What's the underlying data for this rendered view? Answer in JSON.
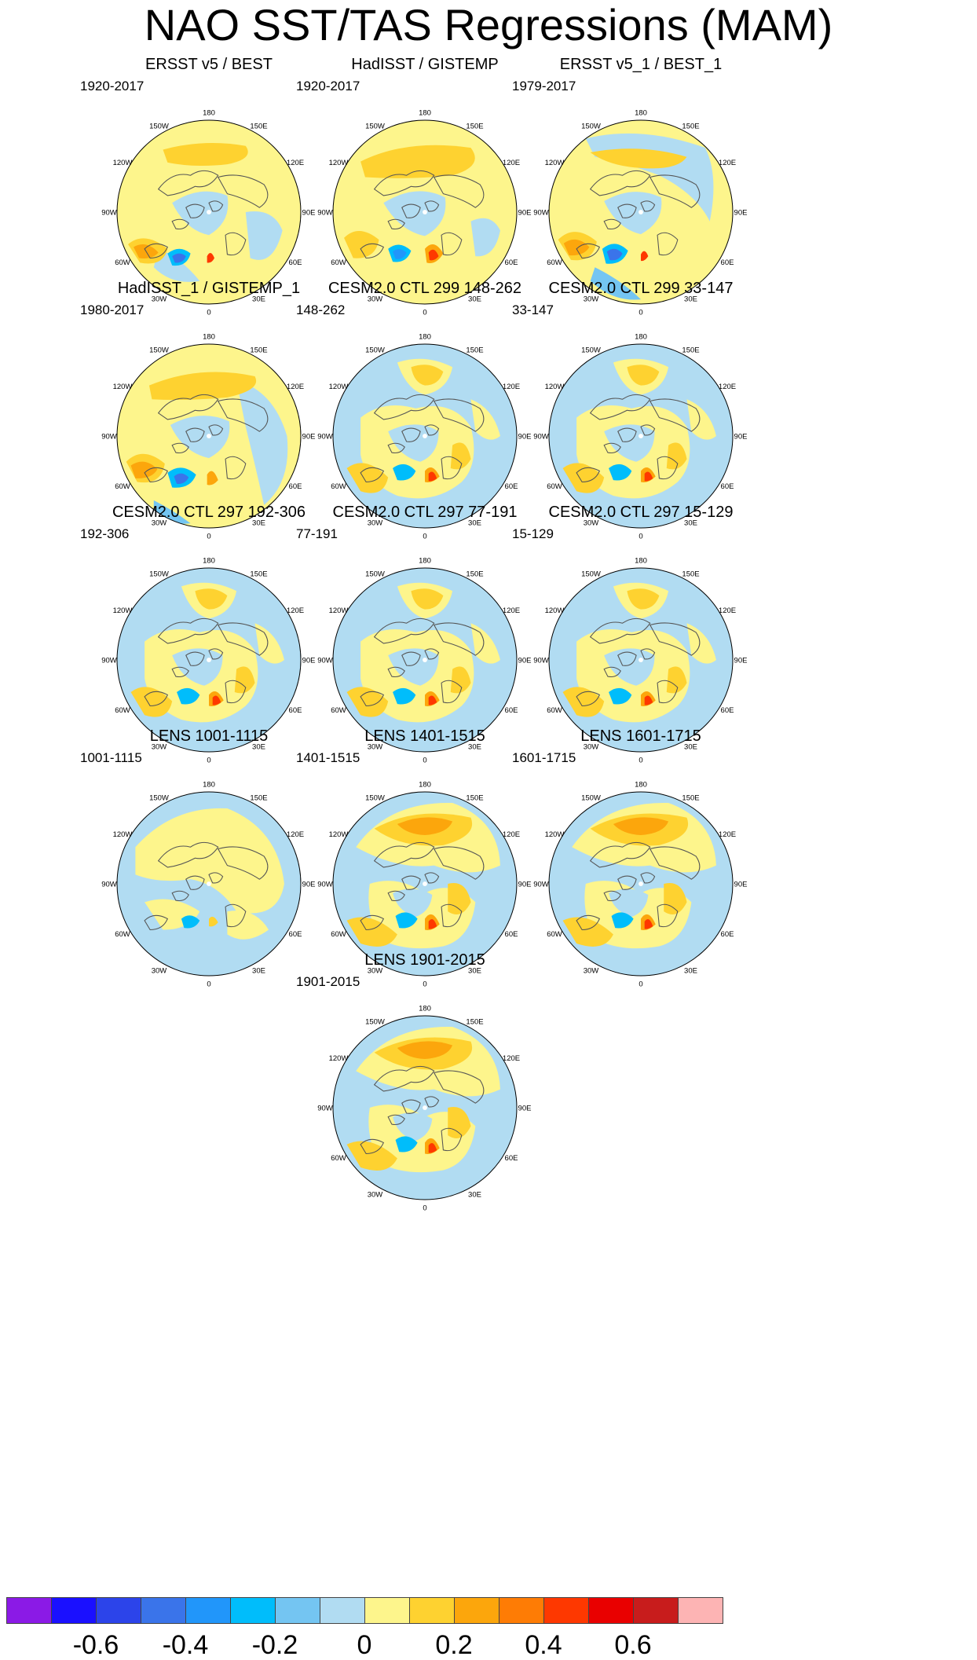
{
  "title": "NAO SST/TAS Regressions (MAM)",
  "panels": [
    {
      "title": "ERSST v5 / BEST",
      "period": "1920-2017",
      "pattern": "obs1"
    },
    {
      "title": "HadISST / GISTEMP",
      "period": "1920-2017",
      "pattern": "obs2"
    },
    {
      "title": "ERSST v5_1 / BEST_1",
      "period": "1979-2017",
      "pattern": "obs3"
    },
    {
      "title": "HadISST_1 / GISTEMP_1",
      "period": "1980-2017",
      "pattern": "obs4"
    },
    {
      "title": "CESM2.0 CTL 299 148-262",
      "period": "148-262",
      "pattern": "cesm"
    },
    {
      "title": "CESM2.0 CTL 299 33-147",
      "period": "33-147",
      "pattern": "cesm"
    },
    {
      "title": "CESM2.0 CTL 297 192-306",
      "period": "192-306",
      "pattern": "cesm"
    },
    {
      "title": "CESM2.0 CTL 297 77-191",
      "period": "77-191",
      "pattern": "cesm"
    },
    {
      "title": "CESM2.0 CTL 297 15-129",
      "period": "15-129",
      "pattern": "cesm"
    },
    {
      "title": "LENS 1001-1115",
      "period": "1001-1115",
      "pattern": "lensweak"
    },
    {
      "title": "LENS 1401-1515",
      "period": "1401-1515",
      "pattern": "lens"
    },
    {
      "title": "LENS 1601-1715",
      "period": "1601-1715",
      "pattern": "lens"
    },
    {
      "title": "LENS 1901-2015",
      "period": "1901-2015",
      "pattern": "lens"
    }
  ],
  "lon_labels": [
    "180",
    "150E",
    "120E",
    "90E",
    "60E",
    "30E",
    "0",
    "30W",
    "60W",
    "90W",
    "120W",
    "150W"
  ],
  "colorbar": {
    "colors": [
      "#8b1ae6",
      "#1a10ff",
      "#2c44ea",
      "#3a74ea",
      "#2196fa",
      "#00bdfb",
      "#74c5f2",
      "#b1dcf2",
      "#fdf58c",
      "#fed230",
      "#fca60c",
      "#fe7c05",
      "#fe3800",
      "#e90000",
      "#c81c1c",
      "#fdb4b4"
    ],
    "labels": [
      "-0.6",
      "-0.4",
      "-0.2",
      "0",
      "0.2",
      "0.4",
      "0.6"
    ],
    "label_values": [
      -0.6,
      -0.4,
      -0.2,
      0,
      0.2,
      0.4,
      0.6
    ],
    "levels": [
      -0.7,
      -0.6,
      -0.5,
      -0.4,
      -0.3,
      -0.2,
      -0.1,
      0,
      0.1,
      0.2,
      0.3,
      0.4,
      0.5,
      0.6,
      0.7
    ]
  },
  "colors": {
    "land_outline": "#555555",
    "map_border": "#000000"
  }
}
